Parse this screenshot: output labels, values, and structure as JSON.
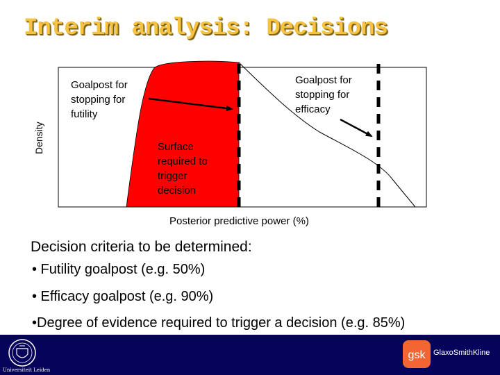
{
  "slide": {
    "title": "Interim analysis: Decisions"
  },
  "diagram": {
    "y_axis_label": "Density",
    "x_axis_label": "Posterior predictive power (%)",
    "futility_annotation": [
      "Goalpost for",
      "stopping for",
      "futility"
    ],
    "efficacy_annotation": [
      "Goalpost for",
      "stopping for",
      "efficacy"
    ],
    "surface_annotation": [
      "Surface",
      "required to",
      "trigger",
      "decision"
    ],
    "colors": {
      "surface_fill": "#ff0000",
      "goalpost": "#000000",
      "curve": "#000000"
    }
  },
  "criteria": {
    "heading": "Decision criteria to be determined:",
    "items": [
      "• Futility goalpost (e.g. 50%)",
      "• Efficacy goalpost (e.g. 90%)",
      "•Degree of evidence required to trigger a decision (e.g. 85%)"
    ]
  },
  "footer": {
    "left_logo_text": "Universiteit Leiden",
    "right_logo_text": "GlaxoSmithKline",
    "right_logo_mark": "gsk",
    "colors": {
      "background": "#06035a",
      "gsk_orange": "#f36633"
    }
  }
}
